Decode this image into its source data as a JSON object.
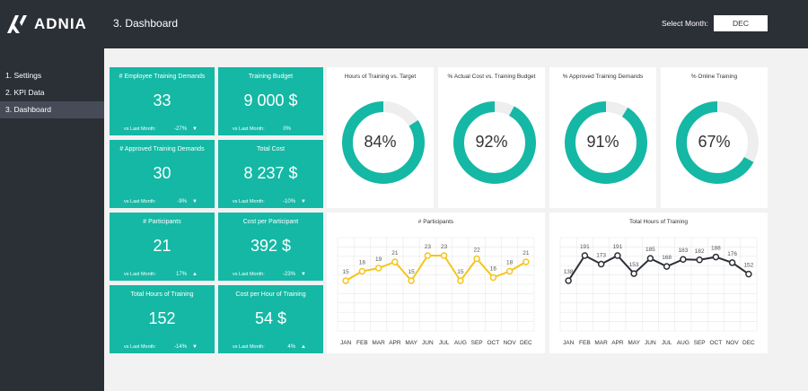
{
  "brand": {
    "name": "ADNIA"
  },
  "nav": [
    {
      "label": "1. Settings"
    },
    {
      "label": "2. KPI Data"
    },
    {
      "label": "3. Dashboard"
    }
  ],
  "header": {
    "title": "3. Dashboard",
    "month_label": "Select Month:",
    "month_value": "DEC"
  },
  "kpis": [
    {
      "title": "# Employee Training Demands",
      "value": "33",
      "vs": "vs Last Month:",
      "delta": "-27%",
      "arrow": "▼"
    },
    {
      "title": "Training Budget",
      "value": "9 000 $",
      "vs": "vs Last Month:",
      "delta": "0%",
      "arrow": ""
    },
    {
      "title": "# Approved Training Demands",
      "value": "30",
      "vs": "vs Last Month:",
      "delta": "-9%",
      "arrow": "▼"
    },
    {
      "title": "Total Cost",
      "value": "8 237 $",
      "vs": "vs Last Month:",
      "delta": "-10%",
      "arrow": "▼"
    },
    {
      "title": "# Participants",
      "value": "21",
      "vs": "vs Last Month:",
      "delta": "17%",
      "arrow": "▲"
    },
    {
      "title": "Cost per Participant",
      "value": "392 $",
      "vs": "vs Last Month:",
      "delta": "-23%",
      "arrow": "▼"
    },
    {
      "title": "Total Hours of Training",
      "value": "152",
      "vs": "vs Last Month:",
      "delta": "-14%",
      "arrow": "▼"
    },
    {
      "title": "Cost per Hour of Training",
      "value": "54 $",
      "vs": "vs Last Month:",
      "delta": "4%",
      "arrow": "▲"
    }
  ],
  "colors": {
    "teal": "#14b8a5",
    "track": "#eeeeee",
    "yellow": "#f5c518",
    "dark": "#2b2f36"
  },
  "donuts": [
    {
      "title": "Hours of Training vs. Target",
      "label": "84%",
      "value": 84
    },
    {
      "title": "% Actual Cost vs. Training Budget",
      "label": "92%",
      "value": 92
    },
    {
      "title": "% Approved Training Demands",
      "label": "91%",
      "value": 91
    },
    {
      "title": "% Online Training",
      "label": "67%",
      "value": 67
    }
  ],
  "chart_data": [
    {
      "type": "line",
      "title": "# Participants",
      "categories": [
        "JAN",
        "FEB",
        "MAR",
        "APR",
        "MAY",
        "JUN",
        "JUL",
        "AUG",
        "SEP",
        "OCT",
        "NOV",
        "DEC"
      ],
      "values": [
        15,
        18,
        19,
        21,
        15,
        23,
        23,
        15,
        22,
        16,
        18,
        21
      ],
      "color": "#f5c518",
      "grid": true
    },
    {
      "type": "line",
      "title": "Total Hours of Training",
      "categories": [
        "JAN",
        "FEB",
        "MAR",
        "APR",
        "MAY",
        "JUN",
        "JUL",
        "AUG",
        "SEP",
        "OCT",
        "NOV",
        "DEC"
      ],
      "values": [
        138,
        191,
        173,
        191,
        153,
        185,
        168,
        183,
        182,
        188,
        176,
        152
      ],
      "color": "#2b2f36",
      "grid": true
    }
  ]
}
